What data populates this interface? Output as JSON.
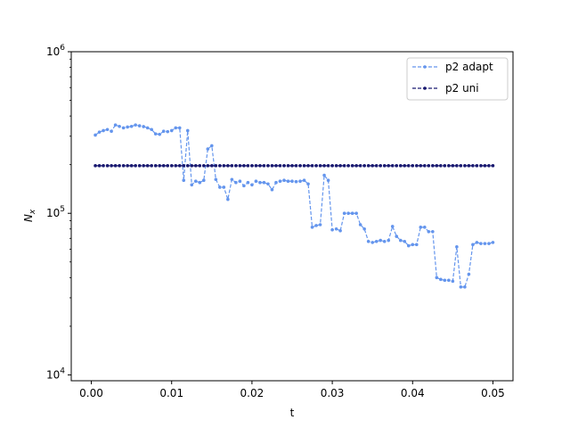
{
  "chart_data": {
    "type": "line",
    "xlabel": "t",
    "ylabel": "N",
    "ylabel_sub": "x",
    "xlim": [
      -0.0025,
      0.0525
    ],
    "ylim": [
      9200,
      1000000
    ],
    "yscale": "log",
    "x_ticks": [
      0.0,
      0.01,
      0.02,
      0.03,
      0.04,
      0.05
    ],
    "x_tick_labels": [
      "0.00",
      "0.01",
      "0.02",
      "0.03",
      "0.04",
      "0.05"
    ],
    "y_ticks": [
      10000,
      100000,
      1000000
    ],
    "y_tick_base": [
      "10",
      "10",
      "10"
    ],
    "y_tick_exp": [
      "4",
      "5",
      "6"
    ],
    "grid": false,
    "legend_position": "top-right",
    "series": [
      {
        "name": "p2 adapt",
        "color": "#6495ed",
        "line_style": "dashed",
        "x": [
          0.0005,
          0.001,
          0.0015,
          0.002,
          0.0025,
          0.003,
          0.0035,
          0.004,
          0.0045,
          0.005,
          0.0055,
          0.006,
          0.0065,
          0.007,
          0.0075,
          0.008,
          0.0085,
          0.009,
          0.0095,
          0.01,
          0.0105,
          0.011,
          0.0115,
          0.012,
          0.0125,
          0.013,
          0.0135,
          0.014,
          0.0145,
          0.015,
          0.0155,
          0.016,
          0.0165,
          0.017,
          0.0175,
          0.018,
          0.0185,
          0.019,
          0.0195,
          0.02,
          0.0205,
          0.021,
          0.0215,
          0.022,
          0.0225,
          0.023,
          0.0235,
          0.024,
          0.0245,
          0.025,
          0.0255,
          0.026,
          0.0265,
          0.027,
          0.0275,
          0.028,
          0.0285,
          0.029,
          0.0295,
          0.03,
          0.0305,
          0.031,
          0.0315,
          0.032,
          0.0325,
          0.033,
          0.0335,
          0.034,
          0.0345,
          0.035,
          0.0355,
          0.036,
          0.0365,
          0.037,
          0.0375,
          0.038,
          0.0385,
          0.039,
          0.0395,
          0.04,
          0.0405,
          0.041,
          0.0415,
          0.042,
          0.0425,
          0.043,
          0.0435,
          0.044,
          0.0445,
          0.045,
          0.0455,
          0.046,
          0.0465,
          0.047,
          0.0475,
          0.048,
          0.0485,
          0.049,
          0.0495,
          0.05
        ],
        "y": [
          305000,
          318000,
          325000,
          330000,
          322000,
          352000,
          345000,
          338000,
          342000,
          345000,
          352000,
          348000,
          344000,
          338000,
          330000,
          310000,
          308000,
          322000,
          320000,
          325000,
          338000,
          338000,
          160000,
          325000,
          150000,
          158000,
          155000,
          160000,
          250000,
          262000,
          162000,
          145000,
          145000,
          122000,
          162000,
          155000,
          158000,
          148000,
          155000,
          150000,
          158000,
          155000,
          155000,
          152000,
          140000,
          155000,
          158000,
          160000,
          158000,
          158000,
          157000,
          158000,
          160000,
          152000,
          82000,
          84000,
          85000,
          172000,
          160000,
          79000,
          80000,
          78000,
          100000,
          100000,
          100000,
          100000,
          85000,
          80000,
          67000,
          66000,
          67000,
          68000,
          67000,
          68000,
          83000,
          72000,
          68000,
          67000,
          63000,
          64000,
          64000,
          82000,
          82000,
          77000,
          77000,
          40000,
          39000,
          38500,
          38500,
          38000,
          62000,
          35000,
          35000,
          42000,
          64000,
          66000,
          65000,
          65000,
          65000,
          66000
        ]
      },
      {
        "name": "p2 uni",
        "color": "#191970",
        "line_style": "dashed",
        "x_start": 0.0005,
        "x_end": 0.05,
        "x_step": 0.0005,
        "y_constant": 197000
      }
    ]
  }
}
